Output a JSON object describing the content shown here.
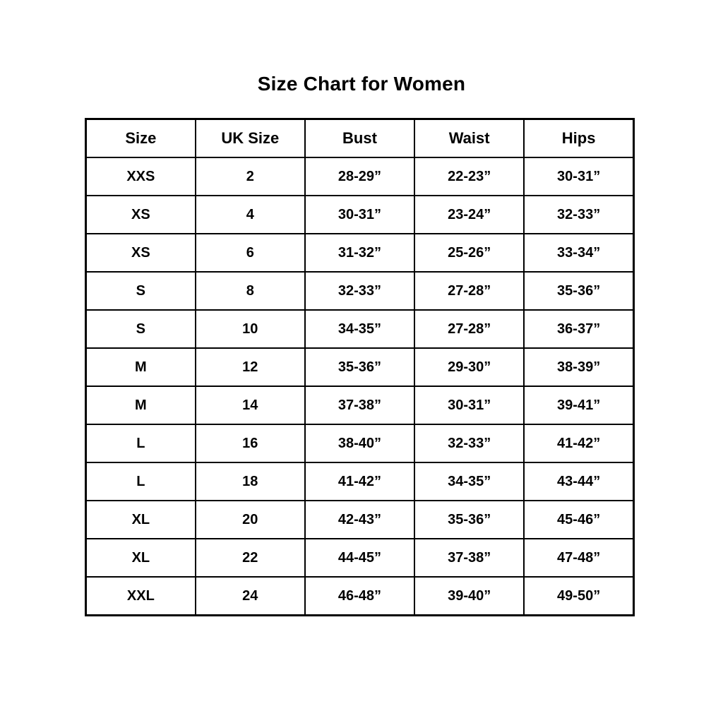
{
  "page_title": "Size Chart for Women",
  "colors": {
    "background": "#ffffff",
    "text": "#000000",
    "table_border": "#000000"
  },
  "chart_data": {
    "type": "table",
    "title": "Size Chart for Women",
    "columns": [
      "Size",
      "UK Size",
      "Bust",
      "Waist",
      "Hips"
    ],
    "rows": [
      [
        "XXS",
        "2",
        "28-29”",
        "22-23”",
        "30-31”"
      ],
      [
        "XS",
        "4",
        "30-31”",
        "23-24”",
        "32-33”"
      ],
      [
        "XS",
        "6",
        "31-32”",
        "25-26”",
        "33-34”"
      ],
      [
        "S",
        "8",
        "32-33”",
        "27-28”",
        "35-36”"
      ],
      [
        "S",
        "10",
        "34-35”",
        "27-28”",
        "36-37”"
      ],
      [
        "M",
        "12",
        "35-36”",
        "29-30”",
        "38-39”"
      ],
      [
        "M",
        "14",
        "37-38”",
        "30-31”",
        "39-41”"
      ],
      [
        "L",
        "16",
        "38-40”",
        "32-33”",
        "41-42”"
      ],
      [
        "L",
        "18",
        "41-42”",
        "34-35”",
        "43-44”"
      ],
      [
        "XL",
        "20",
        "42-43”",
        "35-36”",
        "45-46”"
      ],
      [
        "XL",
        "22",
        "44-45”",
        "37-38”",
        "47-48”"
      ],
      [
        "XXL",
        "24",
        "46-48”",
        "39-40”",
        "49-50”"
      ]
    ]
  }
}
